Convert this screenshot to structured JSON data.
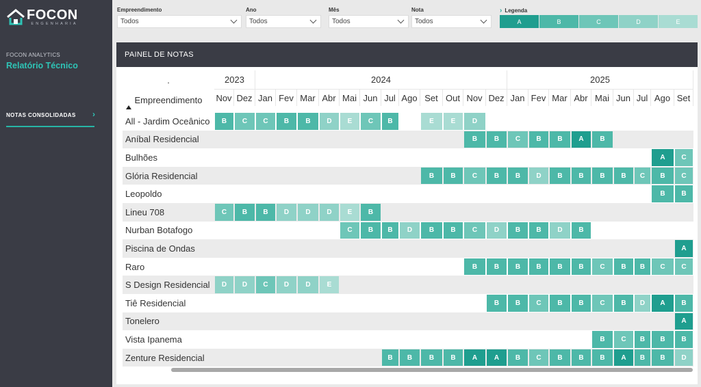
{
  "sidebar": {
    "logo_word": "FOCON",
    "logo_sub": "ENGENHARIA",
    "kicker": "FOCON ANALYTICS",
    "title": "Relatório Técnico",
    "nav_item": "NOTAS CONSOLIDADAS",
    "nav_arrow": "›"
  },
  "filters": [
    {
      "label": "Empreendimento",
      "value": "Todos"
    },
    {
      "label": "Ano",
      "value": "Todos"
    },
    {
      "label": "Mês",
      "value": "Todos"
    },
    {
      "label": "Nota",
      "value": "Todos"
    }
  ],
  "legend": {
    "label": "Legenda",
    "items": [
      {
        "grade": "A",
        "color": "#1f9e8f"
      },
      {
        "grade": "B",
        "color": "#4db8a8"
      },
      {
        "grade": "C",
        "color": "#6ec6b8"
      },
      {
        "grade": "D",
        "color": "#8fd2c7"
      },
      {
        "grade": "E",
        "color": "#a9dcd3"
      }
    ]
  },
  "panel": {
    "title": "PAINEL DE NOTAS",
    "corner": ".",
    "emp_header": "Empreendimento",
    "years": [
      {
        "label": "2023",
        "span": 2
      },
      {
        "label": "2024",
        "span": 12
      },
      {
        "label": "2025",
        "span": 9
      }
    ],
    "months": [
      "Nov",
      "Dez",
      "Jan",
      "Fev",
      "Mar",
      "Abr",
      "Mai",
      "Jun",
      "Jul",
      "Ago",
      "Set",
      "Out",
      "Nov",
      "Dez",
      "Jan",
      "Fev",
      "Mar",
      "Abr",
      "Mai",
      "Jun",
      "Jul",
      "Ago",
      "Set"
    ],
    "rows": [
      {
        "name": "All - Jardim Oceânico",
        "grades": [
          "B",
          "C",
          "C",
          "B",
          "B",
          "D",
          "E",
          "C",
          "B",
          "",
          "E",
          "E",
          "D",
          "",
          "",
          "",
          "",
          "",
          "",
          "",
          "",
          "",
          ""
        ]
      },
      {
        "name": "Aníbal Residencial",
        "grades": [
          "",
          "",
          "",
          "",
          "",
          "",
          "",
          "",
          "",
          "",
          "",
          "",
          "B",
          "B",
          "C",
          "B",
          "B",
          "A",
          "B",
          "",
          "",
          "",
          ""
        ]
      },
      {
        "name": "Bulhões",
        "grades": [
          "",
          "",
          "",
          "",
          "",
          "",
          "",
          "",
          "",
          "",
          "",
          "",
          "",
          "",
          "",
          "",
          "",
          "",
          "",
          "",
          "",
          "A",
          "C"
        ]
      },
      {
        "name": "Glória Residencial",
        "grades": [
          "",
          "",
          "",
          "",
          "",
          "",
          "",
          "",
          "",
          "",
          "B",
          "B",
          "C",
          "B",
          "B",
          "D",
          "B",
          "B",
          "B",
          "B",
          "C",
          "B",
          "C"
        ]
      },
      {
        "name": "Leopoldo",
        "grades": [
          "",
          "",
          "",
          "",
          "",
          "",
          "",
          "",
          "",
          "",
          "",
          "",
          "",
          "",
          "",
          "",
          "",
          "",
          "",
          "",
          "",
          "B",
          "B"
        ]
      },
      {
        "name": "Lineu 708",
        "grades": [
          "C",
          "B",
          "B",
          "D",
          "D",
          "D",
          "E",
          "B",
          "",
          "",
          "",
          "",
          "",
          "",
          "",
          "",
          "",
          "",
          "",
          "",
          "",
          "",
          ""
        ]
      },
      {
        "name": "Nurban Botafogo",
        "grades": [
          "",
          "",
          "",
          "",
          "",
          "",
          "C",
          "B",
          "B",
          "D",
          "B",
          "B",
          "C",
          "D",
          "B",
          "B",
          "D",
          "B",
          "",
          "",
          "",
          "",
          ""
        ]
      },
      {
        "name": "Piscina de Ondas",
        "grades": [
          "",
          "",
          "",
          "",
          "",
          "",
          "",
          "",
          "",
          "",
          "",
          "",
          "",
          "",
          "",
          "",
          "",
          "",
          "",
          "",
          "",
          "",
          "A"
        ]
      },
      {
        "name": "Raro",
        "grades": [
          "",
          "",
          "",
          "",
          "",
          "",
          "",
          "",
          "",
          "",
          "",
          "",
          "B",
          "B",
          "B",
          "B",
          "B",
          "B",
          "C",
          "B",
          "B",
          "C",
          "C"
        ]
      },
      {
        "name": "S Design Residencial",
        "grades": [
          "D",
          "D",
          "C",
          "D",
          "D",
          "E",
          "",
          "",
          "",
          "",
          "",
          "",
          "",
          "",
          "",
          "",
          "",
          "",
          "",
          "",
          "",
          "",
          ""
        ]
      },
      {
        "name": "Tiê Residencial",
        "grades": [
          "",
          "",
          "",
          "",
          "",
          "",
          "",
          "",
          "",
          "",
          "",
          "",
          "",
          "B",
          "B",
          "C",
          "B",
          "B",
          "C",
          "B",
          "D",
          "A",
          "B"
        ]
      },
      {
        "name": "Tonelero",
        "grades": [
          "",
          "",
          "",
          "",
          "",
          "",
          "",
          "",
          "",
          "",
          "",
          "",
          "",
          "",
          "",
          "",
          "",
          "",
          "",
          "",
          "",
          "",
          "A"
        ]
      },
      {
        "name": "Vista Ipanema",
        "grades": [
          "",
          "",
          "",
          "",
          "",
          "",
          "",
          "",
          "",
          "",
          "",
          "",
          "",
          "",
          "",
          "",
          "",
          "",
          "B",
          "C",
          "B",
          "B",
          "B"
        ]
      },
      {
        "name": "Zenture Residencial",
        "grades": [
          "",
          "",
          "",
          "",
          "",
          "",
          "",
          "",
          "B",
          "B",
          "B",
          "B",
          "A",
          "A",
          "B",
          "C",
          "B",
          "B",
          "B",
          "A",
          "B",
          "B",
          "D"
        ]
      }
    ]
  }
}
